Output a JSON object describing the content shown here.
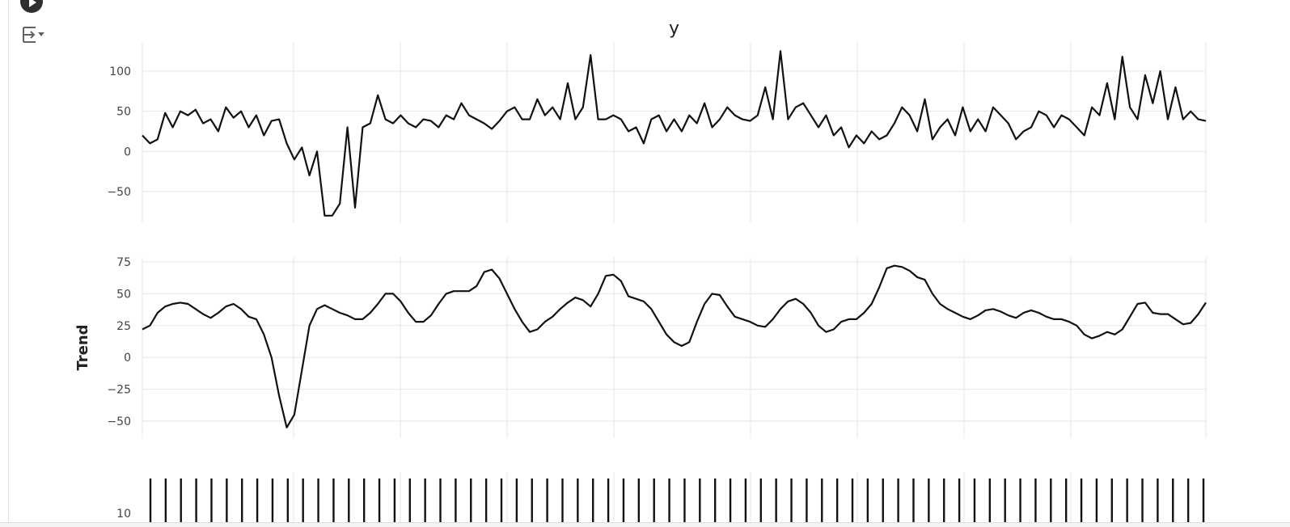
{
  "chart_data": [
    {
      "type": "line",
      "title": "y",
      "ylabel": "",
      "ylim": [
        -85,
        130
      ],
      "yticks": [
        100,
        50,
        0,
        -50
      ],
      "ytick_labels": [
        "100",
        "50",
        "0",
        "−50"
      ],
      "grid": true,
      "color": "#111111",
      "x": [
        0,
        5,
        10,
        15,
        20,
        25,
        30,
        35,
        40,
        45,
        50,
        55,
        60,
        65,
        70,
        75,
        80,
        85,
        90,
        95,
        100,
        105,
        110,
        115,
        120,
        125,
        130,
        135,
        140,
        145,
        150,
        155,
        160,
        165,
        170,
        175,
        180,
        185,
        190,
        195,
        200,
        205,
        210,
        215,
        220,
        225,
        230,
        235,
        240,
        245,
        250,
        255,
        260,
        265,
        270,
        275,
        280,
        285,
        290,
        295,
        300,
        305,
        310,
        315,
        320,
        325,
        330,
        335,
        340,
        345,
        350,
        355,
        360,
        365,
        370,
        375,
        380,
        385,
        390,
        395,
        400,
        405,
        410,
        415,
        420,
        425,
        430,
        435,
        440,
        445,
        450,
        455,
        460,
        465,
        470,
        475,
        480,
        485,
        490,
        495,
        500,
        505,
        510,
        515,
        520,
        525,
        530,
        535,
        540,
        545,
        550,
        555,
        560,
        565,
        570,
        575,
        580,
        585,
        590,
        595,
        600,
        605,
        610,
        615,
        620,
        625,
        630,
        635,
        640,
        645,
        650,
        655,
        660,
        665,
        670,
        675,
        680,
        685,
        690,
        695,
        700
      ],
      "values": [
        20,
        10,
        15,
        48,
        30,
        50,
        45,
        52,
        35,
        40,
        25,
        55,
        42,
        50,
        30,
        45,
        20,
        38,
        40,
        10,
        -10,
        5,
        -30,
        0,
        -80,
        -80,
        -65,
        30,
        -70,
        30,
        35,
        70,
        40,
        35,
        45,
        35,
        30,
        40,
        38,
        30,
        45,
        40,
        60,
        45,
        40,
        35,
        28,
        38,
        50,
        55,
        40,
        40,
        65,
        45,
        55,
        40,
        85,
        40,
        55,
        120,
        40,
        40,
        45,
        40,
        25,
        30,
        10,
        40,
        45,
        25,
        40,
        25,
        45,
        35,
        60,
        30,
        40,
        55,
        45,
        40,
        38,
        45,
        80,
        40,
        125,
        40,
        55,
        60,
        45,
        30,
        45,
        20,
        30,
        5,
        20,
        10,
        25,
        15,
        20,
        35,
        55,
        45,
        25,
        65,
        15,
        30,
        40,
        20,
        55,
        25,
        40,
        25,
        55,
        45,
        35,
        15,
        25,
        30,
        50,
        45,
        30,
        45,
        40,
        30,
        20,
        55,
        45,
        85,
        40,
        118,
        55,
        40,
        95,
        60,
        100,
        40,
        80,
        40,
        50,
        40,
        38
      ]
    },
    {
      "type": "line",
      "title": "",
      "ylabel": "Trend",
      "ylim": [
        -60,
        78
      ],
      "yticks": [
        75,
        50,
        25,
        0,
        -25,
        -50
      ],
      "ytick_labels": [
        "75",
        "50",
        "25",
        "0",
        "−25",
        "−50"
      ],
      "grid": true,
      "color": "#111111",
      "x": [
        0,
        5,
        10,
        15,
        20,
        25,
        30,
        35,
        40,
        45,
        50,
        55,
        60,
        65,
        70,
        75,
        80,
        85,
        90,
        95,
        100,
        105,
        110,
        115,
        120,
        125,
        130,
        135,
        140,
        145,
        150,
        155,
        160,
        165,
        170,
        175,
        180,
        185,
        190,
        195,
        200,
        205,
        210,
        215,
        220,
        225,
        230,
        235,
        240,
        245,
        250,
        255,
        260,
        265,
        270,
        275,
        280,
        285,
        290,
        295,
        300,
        305,
        310,
        315,
        320,
        325,
        330,
        335,
        340,
        345,
        350,
        355,
        360,
        365,
        370,
        375,
        380,
        385,
        390,
        395,
        400,
        405,
        410,
        415,
        420,
        425,
        430,
        435,
        440,
        445,
        450,
        455,
        460,
        465,
        470,
        475,
        480,
        485,
        490,
        495,
        500,
        505,
        510,
        515,
        520,
        525,
        530,
        535,
        540,
        545,
        550,
        555,
        560,
        565,
        570,
        575,
        580,
        585,
        590,
        595,
        600,
        605,
        610,
        615,
        620,
        625,
        630,
        635,
        640,
        645,
        650,
        655,
        660,
        665,
        670,
        675,
        680,
        685,
        690,
        695,
        700
      ],
      "values": [
        22,
        25,
        35,
        40,
        42,
        43,
        42,
        38,
        34,
        31,
        35,
        40,
        42,
        38,
        32,
        30,
        18,
        0,
        -30,
        -55,
        -45,
        -10,
        25,
        38,
        41,
        38,
        35,
        33,
        30,
        30,
        35,
        42,
        50,
        50,
        44,
        35,
        28,
        28,
        33,
        42,
        50,
        52,
        52,
        52,
        56,
        67,
        69,
        62,
        50,
        38,
        28,
        20,
        22,
        28,
        32,
        38,
        43,
        47,
        45,
        40,
        50,
        64,
        65,
        60,
        48,
        46,
        44,
        38,
        28,
        18,
        12,
        9,
        12,
        28,
        42,
        50,
        49,
        40,
        32,
        30,
        28,
        25,
        24,
        30,
        38,
        44,
        46,
        42,
        35,
        25,
        20,
        22,
        28,
        30,
        30,
        35,
        42,
        55,
        70,
        72,
        71,
        68,
        63,
        61,
        50,
        42,
        38,
        35,
        32,
        30,
        33,
        37,
        38,
        36,
        33,
        31,
        35,
        37,
        35,
        32,
        30,
        30,
        28,
        25,
        18,
        15,
        17,
        20,
        18,
        22,
        32,
        42,
        43,
        35,
        34,
        34,
        30,
        26,
        27,
        34,
        43
      ]
    },
    {
      "type": "line",
      "title": "",
      "ylabel": "",
      "yticks": [
        10
      ],
      "ytick_labels": [
        "10"
      ],
      "grid": true,
      "color": "#111111",
      "peak_count": 70,
      "note_visible": "partially cut off at bottom"
    }
  ],
  "icons": {
    "run_button": "play-circle-icon",
    "output_toggle": "output-settings-icon"
  }
}
